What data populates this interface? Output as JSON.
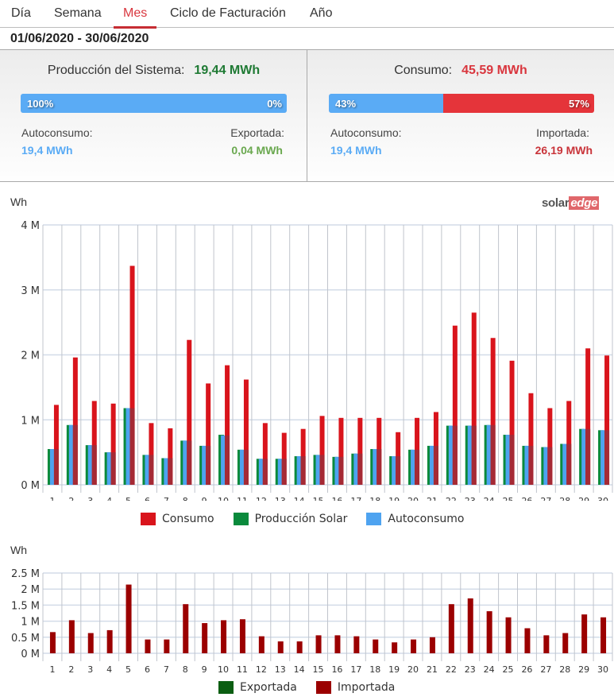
{
  "tabs": [
    {
      "label": "Día",
      "active": false
    },
    {
      "label": "Semana",
      "active": false
    },
    {
      "label": "Mes",
      "active": true
    },
    {
      "label": "Ciclo de Facturación",
      "active": false
    },
    {
      "label": "Año",
      "active": false
    }
  ],
  "date_range": "01/06/2020 - 30/06/2020",
  "production_panel": {
    "title": "Producción del Sistema:",
    "total": "19,44 MWh",
    "bar": [
      {
        "label": "100%",
        "percent": 100,
        "color": "#5aabf5"
      },
      {
        "label": "0%",
        "percent": 0,
        "color": "#6bb644"
      }
    ],
    "left_label": "Autoconsumo:",
    "left_value": "19,4 MWh",
    "right_label": "Exportada:",
    "right_value": "0,04 MWh"
  },
  "consumption_panel": {
    "title": "Consumo:",
    "total": "45,59 MWh",
    "bar": [
      {
        "label": "43%",
        "percent": 43,
        "color": "#5aabf5"
      },
      {
        "label": "57%",
        "percent": 57,
        "color": "#e5343a"
      }
    ],
    "left_label": "Autoconsumo:",
    "left_value": "19,4 MWh",
    "right_label": "Importada:",
    "right_value": "26,19 MWh"
  },
  "colors": {
    "production_total": "#1f7a34",
    "consumption_total": "#d9363e",
    "autoconsumo": "#5aabf5",
    "exportada_text": "#6aa84f",
    "importada_text": "#c9343a"
  },
  "logo": {
    "part1": "solar",
    "part2": "edge"
  },
  "chart_data": [
    {
      "type": "bar",
      "title": "",
      "ylabel": "Wh",
      "xlabel": "",
      "ylim": [
        0,
        4000000
      ],
      "yticks": [
        "0 M",
        "1 M",
        "2 M",
        "3 M",
        "4 M"
      ],
      "grid": true,
      "legend_position": "bottom",
      "categories": [
        "1",
        "2",
        "3",
        "4",
        "5",
        "6",
        "7",
        "8",
        "9",
        "10",
        "11",
        "12",
        "13",
        "14",
        "15",
        "16",
        "17",
        "18",
        "19",
        "20",
        "21",
        "22",
        "23",
        "24",
        "25",
        "26",
        "27",
        "28",
        "29",
        "30"
      ],
      "series": [
        {
          "name": "Consumo",
          "color": "#d9141c",
          "values": [
            1230000,
            1960000,
            1290000,
            1250000,
            3370000,
            950000,
            870000,
            2230000,
            1560000,
            1840000,
            1620000,
            950000,
            800000,
            860000,
            1060000,
            1030000,
            1030000,
            1030000,
            810000,
            1030000,
            1120000,
            2450000,
            2650000,
            2260000,
            1910000,
            1410000,
            1180000,
            1290000,
            2100000,
            1990000
          ]
        },
        {
          "name": "Producción Solar",
          "color": "#0a8a3c",
          "values": [
            550000,
            920000,
            610000,
            500000,
            1180000,
            460000,
            410000,
            680000,
            600000,
            770000,
            540000,
            400000,
            400000,
            440000,
            460000,
            430000,
            480000,
            550000,
            440000,
            540000,
            600000,
            910000,
            910000,
            920000,
            770000,
            600000,
            580000,
            630000,
            860000,
            840000
          ]
        },
        {
          "name": "Autoconsumo",
          "color": "#4ea3f0",
          "values": [
            550000,
            920000,
            610000,
            500000,
            1180000,
            460000,
            410000,
            680000,
            600000,
            760000,
            540000,
            400000,
            400000,
            440000,
            460000,
            430000,
            480000,
            550000,
            440000,
            540000,
            600000,
            910000,
            910000,
            920000,
            770000,
            600000,
            580000,
            630000,
            860000,
            840000
          ]
        }
      ]
    },
    {
      "type": "bar",
      "title": "",
      "ylabel": "Wh",
      "xlabel": "",
      "ylim": [
        0,
        2500000
      ],
      "yticks": [
        "0 M",
        "0.5 M",
        "1 M",
        "1.5 M",
        "2 M",
        "2.5 M"
      ],
      "grid": true,
      "legend_position": "bottom",
      "categories": [
        "1",
        "2",
        "3",
        "4",
        "5",
        "6",
        "7",
        "8",
        "9",
        "10",
        "11",
        "12",
        "13",
        "14",
        "15",
        "16",
        "17",
        "18",
        "19",
        "20",
        "21",
        "22",
        "23",
        "24",
        "25",
        "26",
        "27",
        "28",
        "29",
        "30"
      ],
      "series": [
        {
          "name": "Exportada",
          "color": "#0b5e12",
          "values": [
            0,
            0,
            0,
            0,
            0,
            0,
            0,
            0,
            0,
            0,
            0,
            0,
            0,
            0,
            0,
            0,
            0,
            0,
            0,
            0,
            0,
            0,
            0,
            0,
            0,
            0,
            0,
            0,
            0,
            0
          ]
        },
        {
          "name": "Importada",
          "color": "#9b0000",
          "values": [
            660000,
            1030000,
            630000,
            720000,
            2140000,
            430000,
            430000,
            1530000,
            940000,
            1030000,
            1060000,
            530000,
            370000,
            370000,
            560000,
            560000,
            530000,
            430000,
            340000,
            430000,
            500000,
            1530000,
            1710000,
            1310000,
            1120000,
            780000,
            560000,
            630000,
            1210000,
            1120000
          ]
        }
      ]
    }
  ]
}
